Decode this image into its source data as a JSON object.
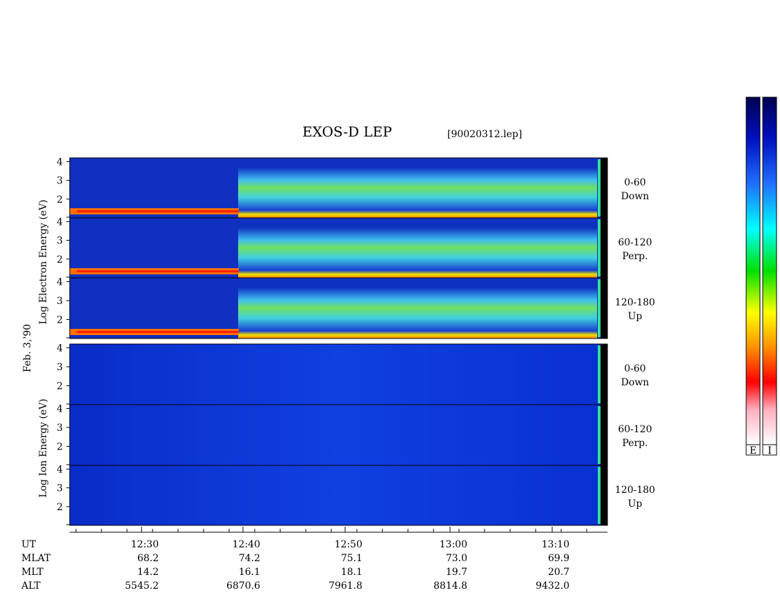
{
  "header": {
    "title": "EXOS-D LEP",
    "file": "[90020312.lep]"
  },
  "axes": {
    "electron_label": "Log Electron Energy (eV)",
    "date_label": "Feb. 3,'90",
    "ion_label": "Log Ion Energy (eV)",
    "ylim": [
      1,
      4.2
    ],
    "yticks": [
      2,
      3,
      4
    ]
  },
  "panels": [
    {
      "group": "electron",
      "lines": [
        "0-60",
        "Down"
      ]
    },
    {
      "group": "electron",
      "lines": [
        "60-120",
        "Perp."
      ]
    },
    {
      "group": "electron",
      "lines": [
        "120-180",
        "Up"
      ]
    },
    {
      "group": "ion",
      "lines": [
        "0-60",
        "Down"
      ]
    },
    {
      "group": "ion",
      "lines": [
        "60-120",
        "Perp."
      ]
    },
    {
      "group": "ion",
      "lines": [
        "120-180",
        "Up"
      ]
    }
  ],
  "table": {
    "row_labels": [
      "UT",
      "MLAT",
      "MLT",
      "ALT"
    ],
    "columns": [
      [
        "12:30",
        "68.2",
        "14.2",
        "5545.2"
      ],
      [
        "12:40",
        "74.2",
        "16.1",
        "6870.6"
      ],
      [
        "12:50",
        "75.1",
        "18.1",
        "7961.8"
      ],
      [
        "13:00",
        "73.0",
        "19.7",
        "8814.8"
      ],
      [
        "13:10",
        "69.9",
        "20.7",
        "9432.0"
      ]
    ]
  },
  "colorbars": [
    "E",
    "I"
  ]
}
